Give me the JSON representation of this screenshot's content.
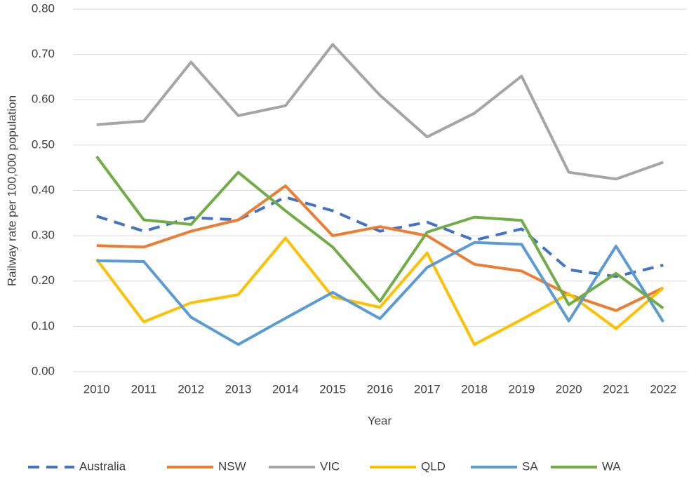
{
  "chart_data": {
    "type": "line",
    "x_label": "Year",
    "y_label": "Railway rate per 100,000 population",
    "categories": [
      "2010",
      "2011",
      "2012",
      "2013",
      "2014",
      "2015",
      "2016",
      "2017",
      "2018",
      "2019",
      "2020",
      "2021",
      "2022"
    ],
    "series": [
      {
        "name": "Australia",
        "color": "#4472c4",
        "line_style": "dashed",
        "values": [
          0.343,
          0.31,
          0.34,
          0.335,
          0.385,
          0.355,
          0.31,
          0.33,
          0.29,
          0.315,
          0.225,
          0.21,
          0.235
        ]
      },
      {
        "name": "NSW",
        "color": "#ed7d31",
        "values": [
          0.278,
          0.275,
          0.31,
          0.335,
          0.41,
          0.3,
          0.32,
          0.3,
          0.237,
          0.222,
          0.17,
          0.135,
          0.185
        ]
      },
      {
        "name": "VIC",
        "color": "#a5a5a5",
        "values": [
          0.545,
          0.553,
          0.683,
          0.565,
          0.587,
          0.722,
          0.61,
          0.518,
          0.57,
          0.652,
          0.44,
          0.425,
          0.462
        ]
      },
      {
        "name": "QLD",
        "color": "#ffc000",
        "values": [
          0.248,
          0.11,
          0.152,
          0.17,
          0.295,
          0.165,
          0.142,
          0.262,
          0.06,
          0.115,
          0.172,
          0.095,
          0.185
        ]
      },
      {
        "name": "SA",
        "color": "#5b9bd5",
        "values": [
          0.245,
          0.243,
          0.12,
          0.06,
          0.118,
          0.175,
          0.117,
          0.23,
          0.285,
          0.281,
          0.112,
          0.277,
          0.11
        ]
      },
      {
        "name": "WA",
        "color": "#70ad47",
        "values": [
          0.475,
          0.335,
          0.325,
          0.44,
          0.355,
          0.275,
          0.155,
          0.308,
          0.341,
          0.334,
          0.148,
          0.217,
          0.14
        ]
      }
    ],
    "ylim": [
      0,
      0.8
    ],
    "yticks": [
      {
        "value": 0,
        "label": "0.00"
      },
      {
        "value": 0.1,
        "label": "0.10"
      },
      {
        "value": 0.2,
        "label": "0.20"
      },
      {
        "value": 0.3,
        "label": "0.30"
      },
      {
        "value": 0.4,
        "label": "0.40"
      },
      {
        "value": 0.5,
        "label": "0.50"
      },
      {
        "value": 0.6,
        "label": "0.60"
      },
      {
        "value": 0.7,
        "label": "0.70"
      },
      {
        "value": 0.8,
        "label": "0.80"
      }
    ],
    "grid": true,
    "legend": "bottom"
  }
}
